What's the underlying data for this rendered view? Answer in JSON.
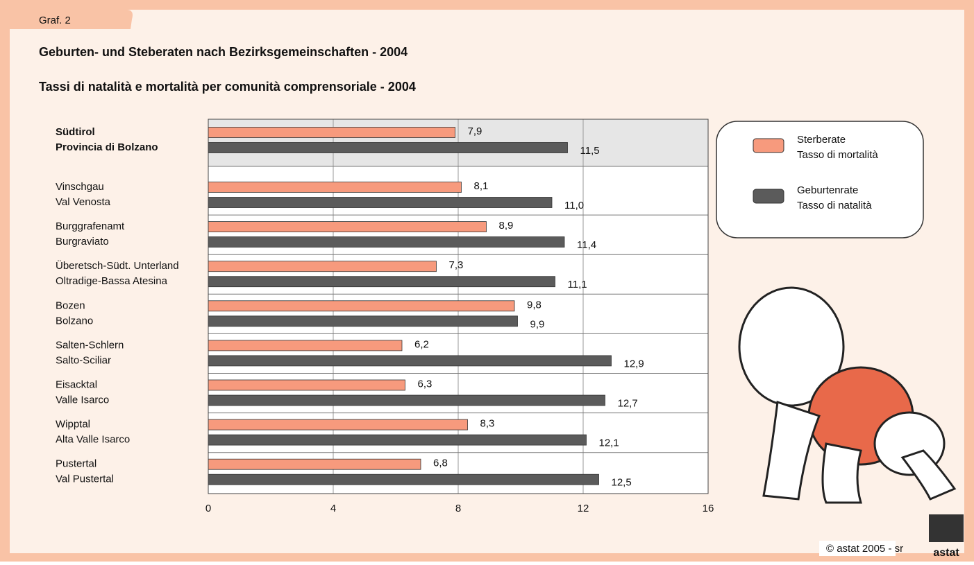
{
  "tab_label": "Graf. 2",
  "chart_data": {
    "type": "bar",
    "orientation": "horizontal",
    "title": "Geburten- und Steberaten nach Bezirksgemeinschaften - 2004",
    "subtitle": "Tassi di natalità e mortalità per comunità comprensoriale - 2004",
    "categories": [
      [
        "Südtirol",
        "Provincia di Bolzano"
      ],
      [
        "Vinschgau",
        "Val Venosta"
      ],
      [
        "Burggrafenamt",
        "Burgraviato"
      ],
      [
        "Überetsch-Südt. Unterland",
        "Oltradige-Bassa Atesina"
      ],
      [
        "Bozen",
        "Bolzano"
      ],
      [
        "Salten-Schlern",
        "Salto-Sciliar"
      ],
      [
        "Eisacktal",
        "Valle Isarco"
      ],
      [
        "Wipptal",
        "Alta Valle Isarco"
      ],
      [
        "Pustertal",
        "Val Pustertal"
      ]
    ],
    "series": [
      {
        "name": [
          "Sterberate",
          "Tasso di mortalità"
        ],
        "color": "#f79a7d",
        "values": [
          7.9,
          8.1,
          8.9,
          7.3,
          9.8,
          6.2,
          6.3,
          8.3,
          6.8
        ],
        "value_labels": [
          "7,9",
          "8,1",
          "8,9",
          "7,3",
          "9,8",
          "6,2",
          "6,3",
          "8,3",
          "6,8"
        ]
      },
      {
        "name": [
          "Geburtenrate",
          "Tasso di natalità"
        ],
        "color": "#5b5b5b",
        "values": [
          11.5,
          11.0,
          11.4,
          11.1,
          9.9,
          12.9,
          12.7,
          12.1,
          12.5
        ],
        "value_labels": [
          "11,5",
          "11,0",
          "11,4",
          "11,1",
          "9,9",
          "12,9",
          "12,7",
          "12,1",
          "12,5"
        ]
      }
    ],
    "xlim": [
      0,
      16
    ],
    "xticks": [
      0,
      4,
      8,
      12,
      16
    ],
    "grid": true,
    "legend": "top-right"
  },
  "footer": "© astat 2005 - sr",
  "logo_text": "astat"
}
